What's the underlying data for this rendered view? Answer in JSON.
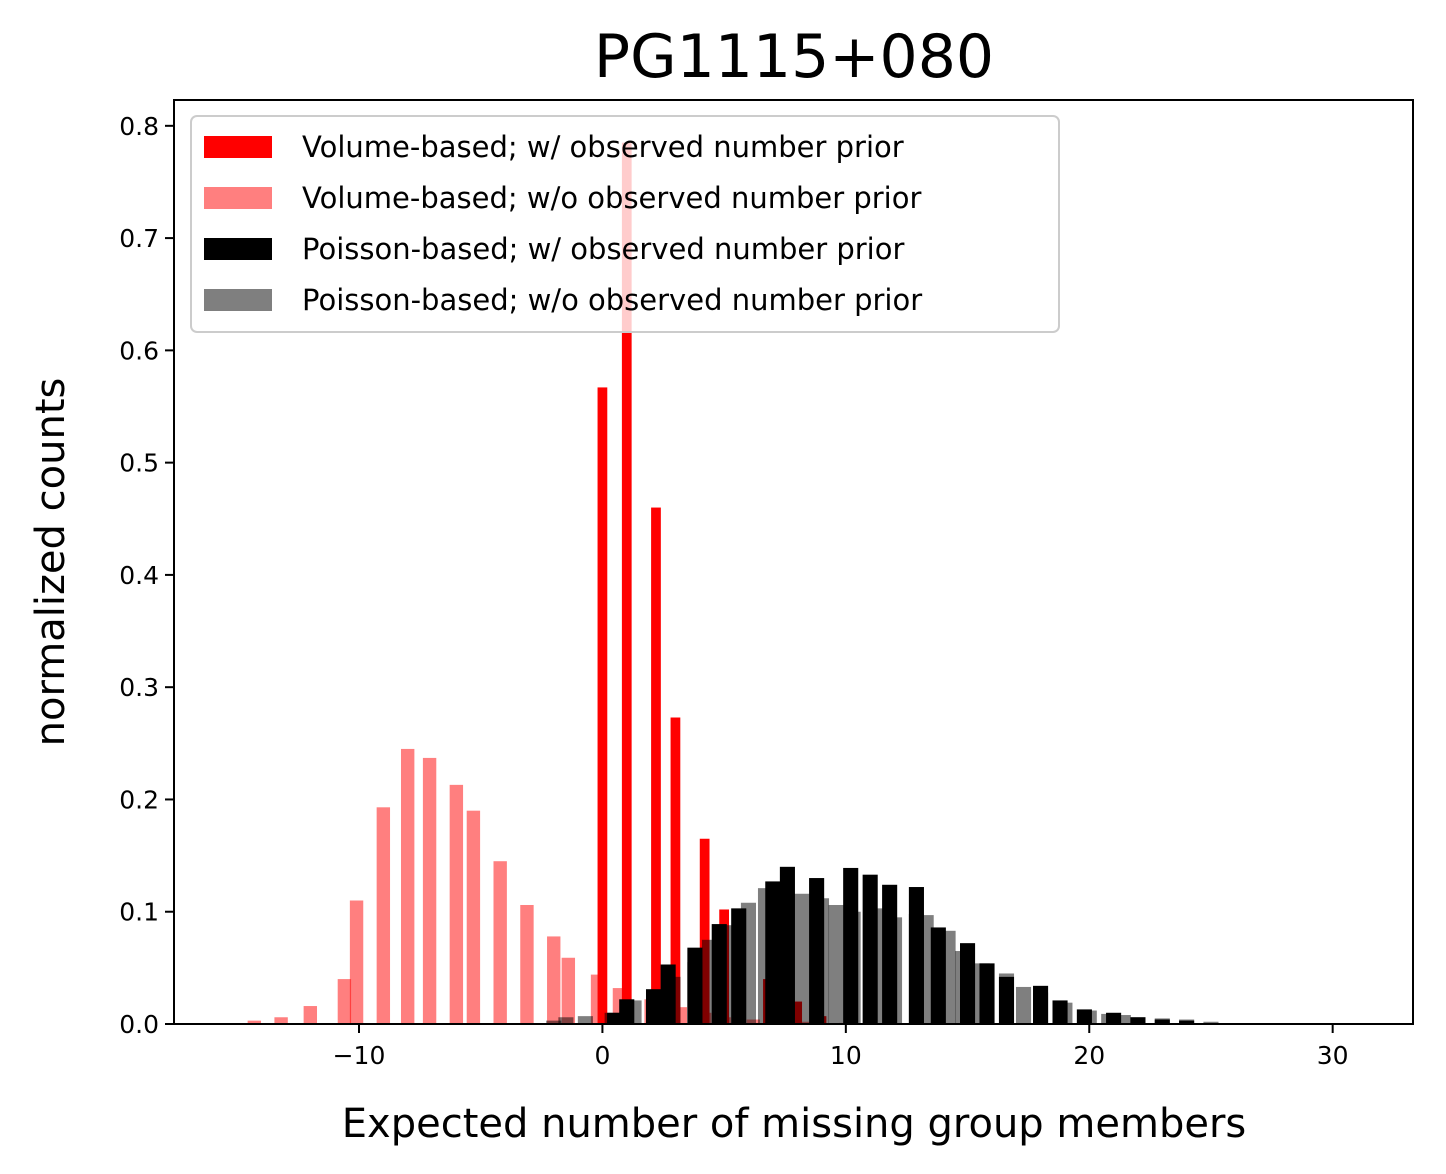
{
  "chart_data": {
    "type": "bar",
    "title": "PG1115+080",
    "xlabel": "Expected number of missing group members",
    "ylabel": "normalized counts",
    "xlim": [
      -17.6,
      33.3
    ],
    "ylim": [
      0,
      0.823
    ],
    "xticks": [
      -10,
      0,
      10,
      20,
      30
    ],
    "xtick_labels": [
      "−10",
      "0",
      "10",
      "20",
      "30"
    ],
    "yticks": [
      0.0,
      0.1,
      0.2,
      0.3,
      0.4,
      0.5,
      0.6,
      0.7,
      0.8
    ],
    "ytick_labels": [
      "0.0",
      "0.1",
      "0.2",
      "0.3",
      "0.4",
      "0.5",
      "0.6",
      "0.7",
      "0.8"
    ],
    "grid": false,
    "legend_position": "top-left",
    "series": [
      {
        "name": "Volume-based; w/ observed number prior",
        "color": "#ff0000",
        "opacity": 1.0,
        "bin_width": 0.4,
        "x": [
          0.0,
          1.0,
          2.2,
          3.0,
          4.2,
          5.0,
          6.8,
          8.0,
          9.0,
          11.0
        ],
        "values": [
          0.567,
          0.785,
          0.46,
          0.273,
          0.165,
          0.102,
          0.04,
          0.02,
          0.007,
          0.003
        ]
      },
      {
        "name": "Volume-based; w/o observed number prior",
        "color": "#ff0000",
        "opacity": 0.5,
        "bin_width": 0.55,
        "x": [
          -14.3,
          -13.2,
          -12.0,
          -10.6,
          -10.1,
          -9.0,
          -8.0,
          -7.1,
          -6.0,
          -5.3,
          -4.2,
          -3.1,
          -2.0,
          -1.4,
          -0.2,
          0.7,
          2.0,
          3.2,
          4.2,
          5.0,
          6.2,
          8.3,
          10.0,
          11.0
        ],
        "values": [
          0.003,
          0.006,
          0.016,
          0.04,
          0.11,
          0.193,
          0.245,
          0.237,
          0.213,
          0.19,
          0.145,
          0.106,
          0.078,
          0.059,
          0.044,
          0.032,
          0.022,
          0.015,
          0.01,
          0.006,
          0.004,
          0.002,
          0.001,
          0.001
        ]
      },
      {
        "name": "Poisson-based; w/ observed number prior",
        "color": "#000000",
        "opacity": 1.0,
        "bin_width": 0.62,
        "x": [
          0.5,
          1.0,
          2.1,
          2.7,
          3.8,
          4.8,
          5.6,
          7.0,
          7.6,
          8.8,
          10.2,
          11.0,
          11.8,
          12.9,
          13.8,
          15.0,
          15.8,
          16.6,
          18.0,
          18.8,
          19.8,
          21.0,
          22.0,
          23.0,
          24.0
        ],
        "values": [
          0.01,
          0.022,
          0.031,
          0.053,
          0.068,
          0.089,
          0.103,
          0.127,
          0.14,
          0.13,
          0.139,
          0.133,
          0.124,
          0.122,
          0.086,
          0.072,
          0.054,
          0.042,
          0.034,
          0.021,
          0.013,
          0.01,
          0.006,
          0.004,
          0.003
        ]
      },
      {
        "name": "Poisson-based; w/o observed number prior",
        "color": "#000000",
        "opacity": 0.5,
        "bin_width": 0.62,
        "x": [
          -2.0,
          -1.5,
          -0.7,
          0.4,
          1.3,
          2.2,
          2.9,
          3.8,
          4.4,
          5.3,
          6.0,
          6.7,
          7.2,
          8.2,
          9.0,
          9.6,
          10.3,
          11.3,
          12.0,
          12.9,
          13.3,
          14.2,
          14.8,
          15.6,
          16.6,
          17.3,
          18.0,
          19.0,
          20.0,
          20.8,
          21.4,
          22.0,
          23.0,
          24.0,
          25.0
        ],
        "values": [
          0.003,
          0.006,
          0.007,
          0.01,
          0.021,
          0.03,
          0.042,
          0.055,
          0.075,
          0.088,
          0.108,
          0.121,
          0.115,
          0.116,
          0.112,
          0.106,
          0.1,
          0.103,
          0.095,
          0.098,
          0.097,
          0.083,
          0.065,
          0.054,
          0.045,
          0.033,
          0.028,
          0.019,
          0.012,
          0.009,
          0.008,
          0.006,
          0.005,
          0.004,
          0.002
        ]
      }
    ]
  }
}
